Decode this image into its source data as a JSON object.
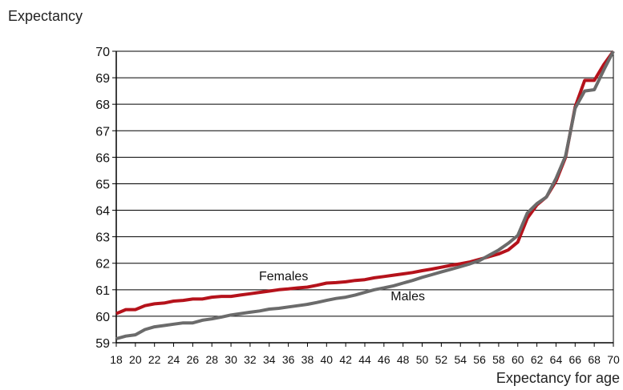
{
  "chart_data": {
    "type": "line",
    "ylabel": "Expectancy",
    "xlabel": "Expectancy for age",
    "xlim": [
      18,
      70
    ],
    "ylim": [
      59,
      70
    ],
    "x_ticks": [
      18,
      20,
      22,
      24,
      26,
      28,
      30,
      32,
      34,
      36,
      38,
      40,
      42,
      44,
      46,
      48,
      50,
      52,
      54,
      56,
      58,
      60,
      62,
      64,
      66,
      68,
      70
    ],
    "y_ticks": [
      59,
      60,
      61,
      62,
      63,
      64,
      65,
      66,
      67,
      68,
      69,
      70
    ],
    "grid": "horizontal",
    "x": [
      18,
      19,
      20,
      21,
      22,
      23,
      24,
      25,
      26,
      27,
      28,
      29,
      30,
      31,
      32,
      33,
      34,
      35,
      36,
      37,
      38,
      39,
      40,
      41,
      42,
      43,
      44,
      45,
      46,
      47,
      48,
      49,
      50,
      51,
      52,
      53,
      54,
      55,
      56,
      57,
      58,
      59,
      60,
      61,
      62,
      63,
      64,
      65,
      66,
      67,
      68,
      69,
      70
    ],
    "series": [
      {
        "name": "Females",
        "color": "#b5121b",
        "values": [
          60.1,
          60.25,
          60.25,
          60.4,
          60.47,
          60.5,
          60.57,
          60.6,
          60.65,
          60.65,
          60.72,
          60.75,
          60.75,
          60.8,
          60.85,
          60.9,
          60.95,
          61.0,
          61.03,
          61.07,
          61.1,
          61.17,
          61.25,
          61.27,
          61.3,
          61.35,
          61.38,
          61.45,
          61.5,
          61.55,
          61.6,
          61.65,
          61.72,
          61.78,
          61.85,
          61.92,
          61.98,
          62.05,
          62.15,
          62.25,
          62.35,
          62.5,
          62.8,
          63.7,
          64.2,
          64.5,
          65.1,
          66.0,
          67.9,
          68.9,
          68.9,
          69.5,
          70.0
        ]
      },
      {
        "name": "Males",
        "color": "#6b6b6b",
        "values": [
          59.15,
          59.25,
          59.3,
          59.5,
          59.6,
          59.65,
          59.7,
          59.75,
          59.75,
          59.85,
          59.9,
          59.97,
          60.05,
          60.1,
          60.15,
          60.2,
          60.27,
          60.3,
          60.35,
          60.4,
          60.45,
          60.52,
          60.6,
          60.67,
          60.72,
          60.8,
          60.9,
          61.0,
          61.07,
          61.15,
          61.25,
          61.35,
          61.47,
          61.57,
          61.67,
          61.77,
          61.87,
          61.98,
          62.1,
          62.3,
          62.5,
          62.75,
          63.05,
          63.9,
          64.25,
          64.5,
          65.2,
          66.05,
          67.85,
          68.5,
          68.55,
          69.3,
          70.0
        ]
      }
    ]
  }
}
